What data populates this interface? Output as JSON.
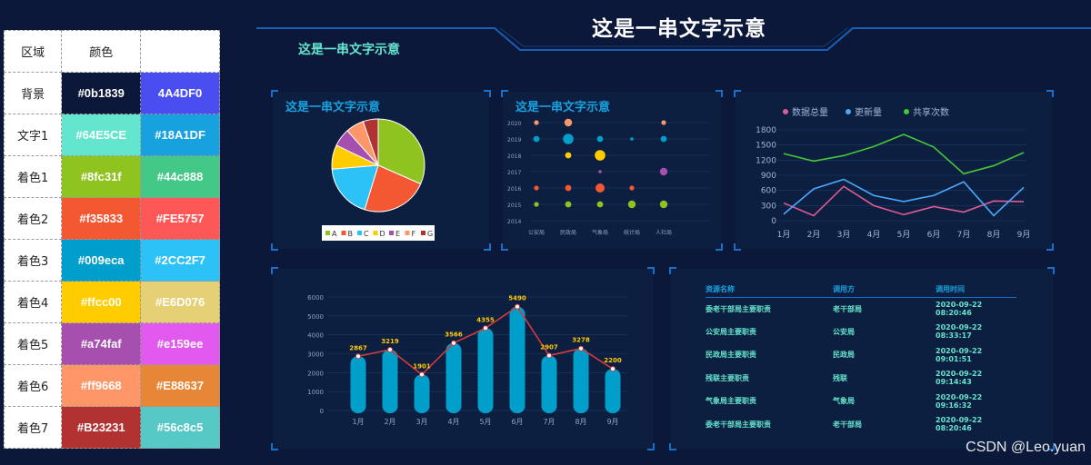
{
  "palette": {
    "headers": [
      "区域",
      "颜色",
      ""
    ],
    "rows": [
      {
        "label": "背景",
        "c1": "#0b1839",
        "c2": "4A4DF0",
        "bg1": "#0b1839",
        "bg2": "#4a4df0"
      },
      {
        "label": "文字1",
        "c1": "#64E5CE",
        "c2": "#18A1DF",
        "bg1": "#64e5ce",
        "bg2": "#18a1df"
      },
      {
        "label": "着色1",
        "c1": "#8fc31f",
        "c2": "#44c888",
        "bg1": "#8fc31f",
        "bg2": "#44c888"
      },
      {
        "label": "着色2",
        "c1": "#f35833",
        "c2": "#FE5757",
        "bg1": "#f35833",
        "bg2": "#fe5757"
      },
      {
        "label": "着色3",
        "c1": "#009eca",
        "c2": "#2CC2F7",
        "bg1": "#009eca",
        "bg2": "#2cc2f7"
      },
      {
        "label": "着色4",
        "c1": "#ffcc00",
        "c2": "#E6D076",
        "bg1": "#ffcc00",
        "bg2": "#e6d076"
      },
      {
        "label": "着色5",
        "c1": "#a74faf",
        "c2": "#e159ee",
        "bg1": "#a74faf",
        "bg2": "#e159ee"
      },
      {
        "label": "着色6",
        "c1": "#ff9668",
        "c2": "#E88637",
        "bg1": "#ff9668",
        "bg2": "#e88637"
      },
      {
        "label": "着色7",
        "c1": "#B23231",
        "c2": "#56c8c5",
        "bg1": "#b23231",
        "bg2": "#56c8c5"
      }
    ]
  },
  "dashboard": {
    "title": "这是一串文字示意",
    "subtitle": "这是一串文字示意",
    "pie_title": "这是一串文字示意",
    "bubble_title": "这是一串文字示意"
  },
  "chart_data": [
    {
      "type": "pie",
      "categories": [
        "A",
        "B",
        "C",
        "D",
        "E",
        "F",
        "G"
      ],
      "values": [
        30,
        22,
        18,
        8,
        6,
        6,
        5
      ],
      "colors": [
        "#8fc31f",
        "#f35833",
        "#2cc2f7",
        "#ffcc00",
        "#a74faf",
        "#ff9668",
        "#b23231"
      ],
      "legend": "bottom"
    },
    {
      "type": "scatter",
      "x": [
        "公安局",
        "民政局",
        "气象局",
        "统计局",
        "人社局"
      ],
      "y_ticks": [
        "2014",
        "2015",
        "2016",
        "2017",
        "2018",
        "2019",
        "2020"
      ],
      "points": [
        {
          "x": 0,
          "y": "2020",
          "size": 2,
          "color": "#ff9668"
        },
        {
          "x": 1,
          "y": "2020",
          "size": 4,
          "color": "#ff9668"
        },
        {
          "x": 4,
          "y": "2020",
          "size": 2,
          "color": "#ff9668"
        },
        {
          "x": 0,
          "y": "2019",
          "size": 3,
          "color": "#009eca"
        },
        {
          "x": 1,
          "y": "2019",
          "size": 6,
          "color": "#009eca"
        },
        {
          "x": 2,
          "y": "2019",
          "size": 3,
          "color": "#009eca"
        },
        {
          "x": 3,
          "y": "2019",
          "size": 1,
          "color": "#009eca"
        },
        {
          "x": 4,
          "y": "2019",
          "size": 3,
          "color": "#009eca"
        },
        {
          "x": 1,
          "y": "2018",
          "size": 3,
          "color": "#ffcc00"
        },
        {
          "x": 2,
          "y": "2018",
          "size": 6,
          "color": "#ffcc00"
        },
        {
          "x": 2,
          "y": "2017",
          "size": 1,
          "color": "#a74faf"
        },
        {
          "x": 4,
          "y": "2017",
          "size": 4,
          "color": "#a74faf"
        },
        {
          "x": 0,
          "y": "2016",
          "size": 2,
          "color": "#f35833"
        },
        {
          "x": 1,
          "y": "2016",
          "size": 3,
          "color": "#f35833"
        },
        {
          "x": 2,
          "y": "2016",
          "size": 5,
          "color": "#f35833"
        },
        {
          "x": 3,
          "y": "2016",
          "size": 2,
          "color": "#f35833"
        },
        {
          "x": 0,
          "y": "2015",
          "size": 2,
          "color": "#8fc31f"
        },
        {
          "x": 1,
          "y": "2015",
          "size": 3,
          "color": "#8fc31f"
        },
        {
          "x": 2,
          "y": "2015",
          "size": 3,
          "color": "#8fc31f"
        },
        {
          "x": 3,
          "y": "2015",
          "size": 4,
          "color": "#8fc31f"
        },
        {
          "x": 4,
          "y": "2015",
          "size": 4,
          "color": "#8fc31f"
        }
      ]
    },
    {
      "type": "line",
      "categories": [
        "1月",
        "2月",
        "3月",
        "4月",
        "5月",
        "6月",
        "7月",
        "8月",
        "9月"
      ],
      "ylim": [
        0,
        1800
      ],
      "yticks": [
        0,
        300,
        600,
        900,
        1200,
        1500,
        1800
      ],
      "legend": "top-left",
      "series": [
        {
          "name": "数据总量",
          "color": "#e05a95",
          "values": [
            350,
            100,
            680,
            300,
            120,
            280,
            170,
            390,
            380
          ]
        },
        {
          "name": "更新量",
          "color": "#4aa8ff",
          "values": [
            130,
            630,
            820,
            500,
            380,
            500,
            770,
            100,
            660
          ]
        },
        {
          "name": "共享次数",
          "color": "#44c837",
          "values": [
            1330,
            1180,
            1290,
            1470,
            1710,
            1460,
            930,
            1090,
            1350
          ]
        }
      ]
    },
    {
      "type": "bar",
      "categories": [
        "1月",
        "2月",
        "3月",
        "4月",
        "5月",
        "6月",
        "7月",
        "8月",
        "9月"
      ],
      "values": [
        2867,
        3219,
        1901,
        3566,
        4355,
        5490,
        2907,
        3278,
        2200
      ],
      "ylim": [
        0,
        6000
      ],
      "yticks": [
        0,
        1000,
        2000,
        3000,
        4000,
        5000,
        6000
      ],
      "bar_color": "#009eca",
      "line_color": "#d23b3b",
      "label_color": "#ffcc00"
    }
  ],
  "table": {
    "headers": [
      "资源名称",
      "调用方",
      "调用时间"
    ],
    "rows": [
      [
        "委老干部局主要职责",
        "老干部局",
        "2020-09-22 08:20:46"
      ],
      [
        "公安局主要职责",
        "公安局",
        "2020-09-22 08:33:17"
      ],
      [
        "民政局主要职责",
        "民政局",
        "2020-09-22 09:01:51"
      ],
      [
        "残联主要职责",
        "残联",
        "2020-09-22 09:14:43"
      ],
      [
        "气象局主要职责",
        "气象局",
        "2020-09-22 09:16:32"
      ],
      [
        "委老干部局主要职责",
        "老干部局",
        "2020-09-22 08:20:46"
      ]
    ]
  },
  "watermark": "CSDN @Leo.yuan"
}
